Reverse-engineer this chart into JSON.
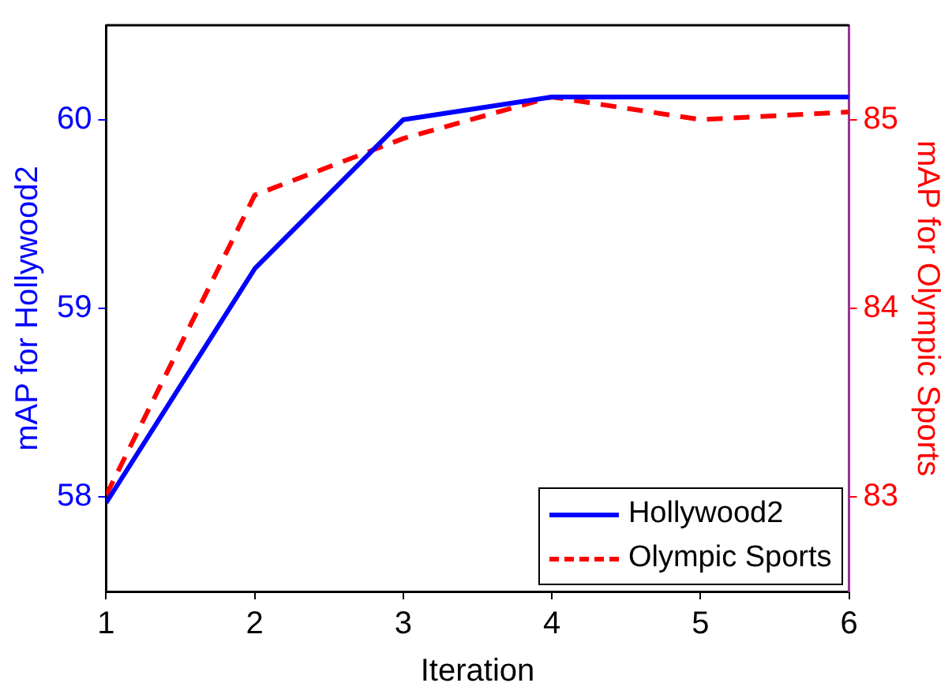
{
  "chart_data": {
    "type": "line",
    "xlabel": "Iteration",
    "ylabel": "mAP for Hollywood2",
    "y2label": "mAP for Olympic Sports",
    "x": [
      1,
      2,
      3,
      4,
      5,
      6
    ],
    "xlim": [
      1,
      6
    ],
    "xticks": [
      1,
      2,
      3,
      4,
      5,
      6
    ],
    "ylim": [
      57.5,
      60.5
    ],
    "yticks": [
      58,
      59,
      60
    ],
    "y2lim": [
      82.5,
      85.5
    ],
    "y2ticks": [
      83,
      84,
      85
    ],
    "series": [
      {
        "name": "Hollywood2",
        "color": "#0000ff",
        "values": [
          57.97,
          59.21,
          60.0,
          60.12,
          60.12,
          60.12
        ],
        "line_style": "solid"
      },
      {
        "name": "Olympic Sports",
        "color": "#ff0000",
        "axis": "y2",
        "values": [
          83.01,
          84.6,
          84.9,
          85.12,
          85.0,
          85.04
        ],
        "line_style": "dashed"
      }
    ],
    "grid": false,
    "legend": "bottom right",
    "marker": "none"
  }
}
